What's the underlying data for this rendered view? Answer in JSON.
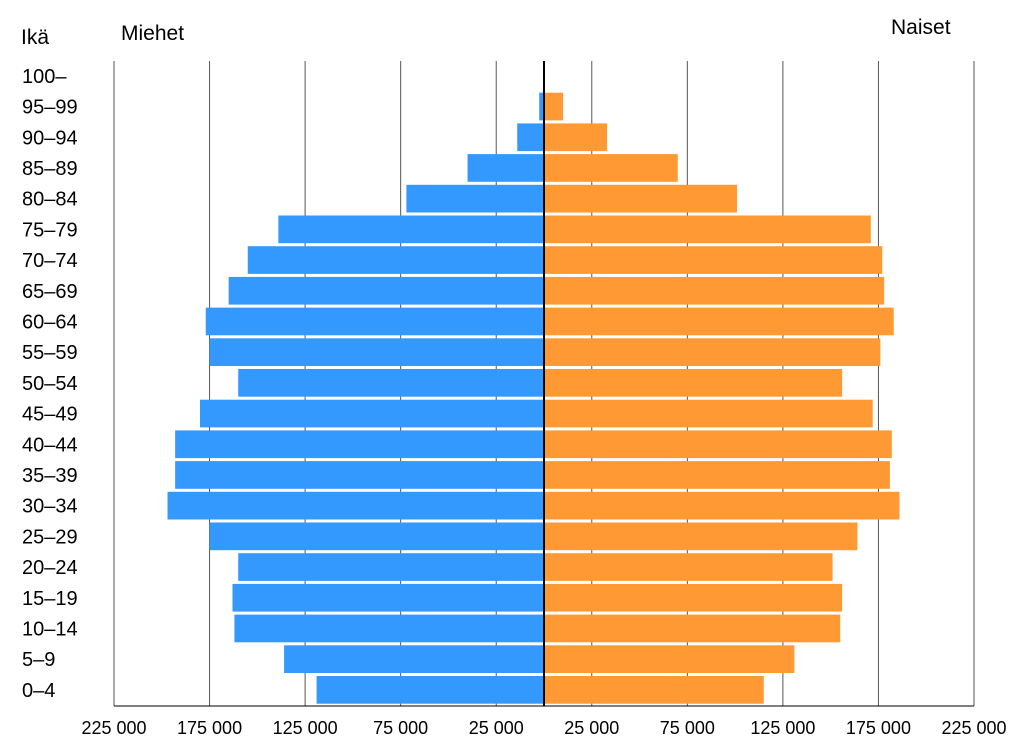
{
  "chart_data": {
    "type": "bar",
    "orientation": "horizontal",
    "layout": "population-pyramid",
    "title": "",
    "y_axis_title": "Ikä",
    "left_group_label": "Miehet",
    "right_group_label": "Naiset",
    "categories": [
      "100–",
      "95–99",
      "90–94",
      "85–89",
      "80–84",
      "75–79",
      "70–74",
      "65–69",
      "60–64",
      "55–59",
      "50–54",
      "45–49",
      "40–44",
      "35–39",
      "30–34",
      "25–29",
      "20–24",
      "15–19",
      "10–14",
      "5–9",
      "0–4"
    ],
    "series": [
      {
        "name": "Miehet",
        "side": "left",
        "color": "#3399ff",
        "values": [
          500,
          2500,
          14000,
          40000,
          72000,
          139000,
          155000,
          165000,
          177000,
          175000,
          160000,
          180000,
          193000,
          193000,
          197000,
          175000,
          160000,
          163000,
          162000,
          136000,
          119000
        ]
      },
      {
        "name": "Naiset",
        "side": "right",
        "color": "#ff9933",
        "values": [
          500,
          10000,
          33000,
          70000,
          101000,
          171000,
          177000,
          178000,
          183000,
          176000,
          156000,
          172000,
          182000,
          181000,
          186000,
          164000,
          151000,
          156000,
          155000,
          131000,
          115000
        ]
      }
    ],
    "xlim": [
      -225000,
      225000
    ],
    "x_ticks": [
      -225000,
      -175000,
      -125000,
      -75000,
      -25000,
      25000,
      75000,
      125000,
      175000,
      225000
    ],
    "x_tick_labels": [
      "225 000",
      "175 000",
      "125 000",
      "75 000",
      "25 000",
      "25 000",
      "75 000",
      "125 000",
      "175 000",
      "225 000"
    ],
    "grid": true,
    "gridline_color": "#555555",
    "axis_color": "#000000",
    "legend": "none"
  }
}
